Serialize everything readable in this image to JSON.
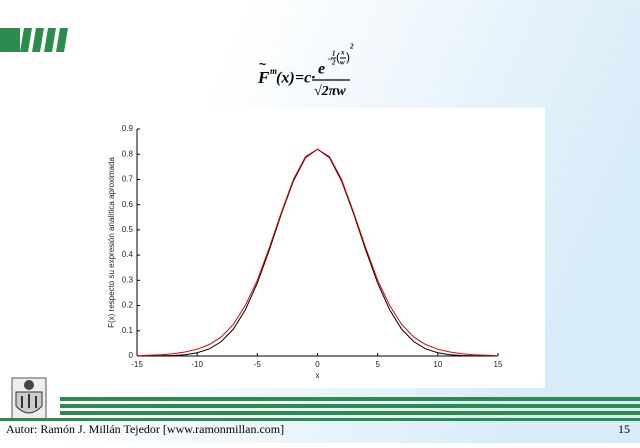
{
  "slide": {
    "formula": {
      "lhs": "F",
      "lhs_sup": "m",
      "arg": "(x)",
      "mid": "=c·",
      "base": "e",
      "exp_sign": "−",
      "exp_num": "1",
      "exp_den": "2",
      "exp_in_num": "x",
      "exp_in_den": "w",
      "exp_pow": "2",
      "denominator": "√2πw"
    },
    "footer": "Autor: Ramón J. Millán Tejedor [www.ramonmillan.com]",
    "page": "15"
  },
  "chart_data": {
    "type": "line",
    "x_label": "x",
    "y_label": "F(x) respecto su expresión analítica aproximada",
    "x": [
      -15,
      -14,
      -13,
      -12,
      -11,
      -10,
      -9,
      -8,
      -7,
      -6,
      -5,
      -4,
      -3,
      -2,
      -1,
      0,
      1,
      2,
      3,
      4,
      5,
      6,
      7,
      8,
      9,
      10,
      11,
      12,
      13,
      14,
      15
    ],
    "series": [
      {
        "color": "#000000",
        "values": [
          0,
          0,
          0.001,
          0.002,
          0.005,
          0.013,
          0.028,
          0.057,
          0.106,
          0.183,
          0.289,
          0.421,
          0.564,
          0.694,
          0.786,
          0.82,
          0.786,
          0.694,
          0.564,
          0.421,
          0.289,
          0.183,
          0.106,
          0.057,
          0.028,
          0.013,
          0.005,
          0.002,
          0.001,
          0,
          0
        ]
      },
      {
        "color": "#e00000",
        "values": [
          0.001,
          0.003,
          0.005,
          0.009,
          0.016,
          0.027,
          0.045,
          0.075,
          0.125,
          0.2,
          0.3,
          0.43,
          0.57,
          0.7,
          0.79,
          0.82,
          0.79,
          0.7,
          0.57,
          0.43,
          0.3,
          0.2,
          0.125,
          0.075,
          0.045,
          0.027,
          0.016,
          0.009,
          0.005,
          0.003,
          0.001
        ]
      }
    ],
    "xlim": [
      -15,
      15
    ],
    "ylim": [
      0,
      0.9
    ],
    "xticks": [
      -15,
      -10,
      -5,
      0,
      5,
      10,
      15
    ],
    "yticks": [
      0,
      0.1,
      0.2,
      0.3,
      0.4,
      0.5,
      0.6,
      0.7,
      0.8,
      0.9
    ]
  }
}
